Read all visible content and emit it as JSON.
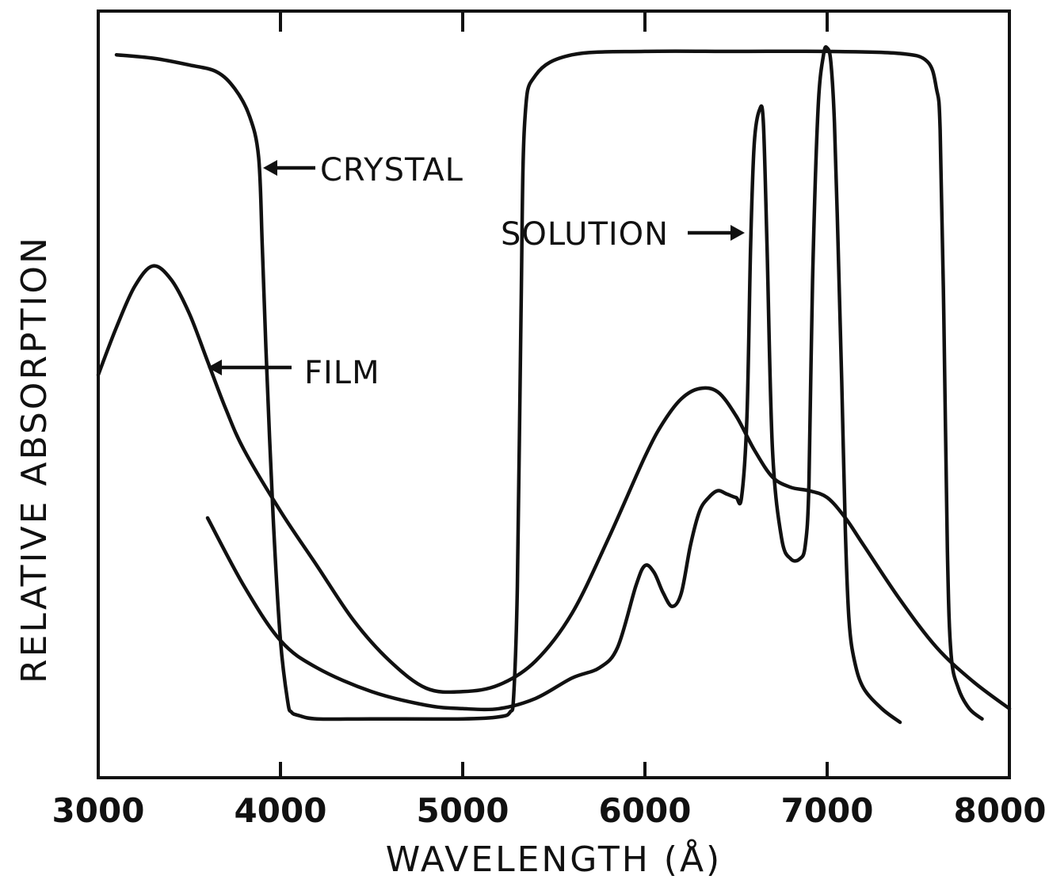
{
  "chart_data": {
    "type": "line",
    "xlabel": "WAVELENGTH (Å)",
    "ylabel": "RELATIVE ABSORPTION",
    "xlim": [
      3000,
      8000
    ],
    "ylim": [
      0,
      100
    ],
    "x_ticks": [
      3000,
      4000,
      5000,
      6000,
      7000,
      8000
    ],
    "x_tick_labels": [
      "3000",
      "4000",
      "5000",
      "6000",
      "7000",
      "8000"
    ],
    "y_tick_labels": [],
    "grid": false,
    "legend": "none",
    "annotations": [
      {
        "text": "CRYSTAL",
        "points_to_series": "crystal",
        "x": 3900,
        "y": 81
      },
      {
        "text": "SOLUTION",
        "points_to_series": "solution",
        "x": 6550,
        "y": 72
      },
      {
        "text": "FILM",
        "points_to_series": "film",
        "x": 3600,
        "y": 55
      }
    ],
    "series": [
      {
        "name": "CRYSTAL",
        "x": [
          3100,
          3300,
          3500,
          3650,
          3750,
          3830,
          3880,
          3900,
          3920,
          3960,
          4000,
          4040,
          4060,
          4100,
          4200,
          4500,
          5000,
          5200,
          5260,
          5280,
          5300,
          5320,
          5340,
          5400,
          5600,
          6000,
          6500,
          7000,
          7400,
          7550,
          7600,
          7620,
          7640,
          7660,
          7680,
          7720,
          7780,
          7850
        ],
        "y": [
          98,
          97.5,
          96.5,
          95.5,
          93,
          89,
          83,
          70,
          55,
          30,
          12,
          3,
          1.5,
          1,
          0.5,
          0.5,
          0.5,
          0.8,
          1.5,
          4,
          20,
          60,
          88,
          95,
          98,
          98.5,
          98.5,
          98.5,
          98.2,
          97,
          93,
          87,
          60,
          25,
          10,
          5,
          2,
          0.5
        ]
      },
      {
        "name": "SOLUTION",
        "x": [
          3600,
          3800,
          4000,
          4200,
          4500,
          4800,
          5000,
          5200,
          5400,
          5600,
          5750,
          5850,
          5950,
          6000,
          6050,
          6100,
          6150,
          6200,
          6250,
          6300,
          6350,
          6400,
          6450,
          6500,
          6530,
          6560,
          6580,
          6600,
          6630,
          6650,
          6670,
          6700,
          6750,
          6800,
          6850,
          6880,
          6900,
          6920,
          6950,
          6980,
          7000,
          7020,
          7040,
          7060,
          7080,
          7100,
          7120,
          7150,
          7200,
          7300,
          7400
        ],
        "y": [
          30,
          20,
          12,
          8,
          4.5,
          2.5,
          2,
          2,
          3.5,
          6.5,
          8,
          11,
          20,
          23,
          22,
          19,
          17,
          19,
          26,
          31,
          33,
          34,
          33.5,
          33,
          33,
          45,
          70,
          85,
          90,
          88,
          70,
          40,
          27,
          24,
          24,
          26,
          35,
          65,
          90,
          98,
          99,
          97,
          88,
          70,
          50,
          28,
          15,
          9,
          5,
          2,
          0
        ]
      },
      {
        "name": "FILM",
        "x": [
          3000,
          3100,
          3200,
          3300,
          3400,
          3500,
          3600,
          3700,
          3800,
          4000,
          4200,
          4400,
          4600,
          4800,
          5000,
          5200,
          5400,
          5600,
          5800,
          6000,
          6100,
          6200,
          6300,
          6400,
          6500,
          6600,
          6700,
          6800,
          6900,
          7000,
          7100,
          7200,
          7400,
          7600,
          7800,
          8000
        ],
        "y": [
          51,
          58,
          64,
          67,
          65,
          60,
          53,
          46,
          40,
          31,
          23,
          15,
          9,
          5,
          4.5,
          5.5,
          9,
          16,
          27,
          39,
          44,
          47.5,
          49,
          48.5,
          45,
          40,
          36,
          34.5,
          34,
          33,
          30,
          26,
          18,
          11,
          6,
          2
        ]
      }
    ]
  }
}
